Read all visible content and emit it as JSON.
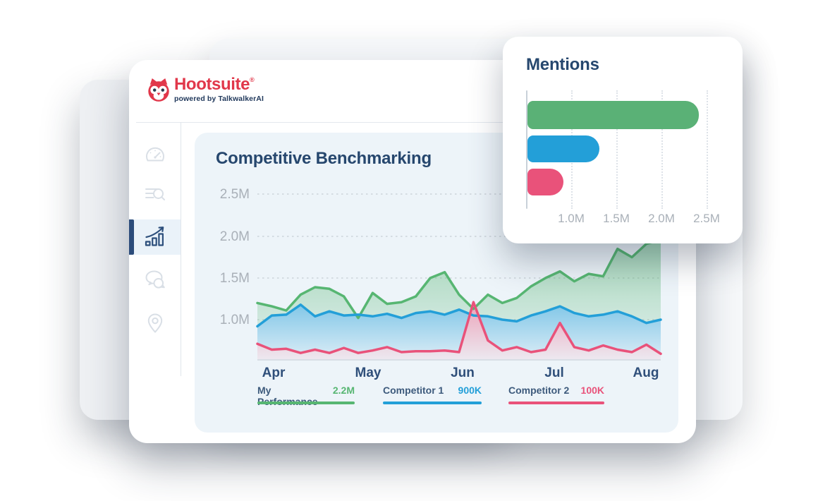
{
  "brand": {
    "logo_text": "Hootsuite",
    "registered_mark": "®",
    "tagline": "powered by TalkwalkerAI",
    "logo_red": "#e1374a",
    "navy": "#26476e"
  },
  "sidebar": {
    "active_color": "#2d4f7c",
    "inactive_color": "#d9dfe6",
    "active_bg": "#eaf2f9",
    "items": [
      {
        "label": "dashboard",
        "icon": "speedometer-icon",
        "active": false
      },
      {
        "label": "listening-search",
        "icon": "search-list-icon",
        "active": false
      },
      {
        "label": "analytics",
        "icon": "growth-chart-icon",
        "active": true
      },
      {
        "label": "conversations",
        "icon": "chat-bubbles-icon",
        "active": false
      },
      {
        "label": "locations",
        "icon": "location-pin-icon",
        "active": false
      }
    ]
  },
  "benchmark_panel": {
    "title": "Competitive Benchmarking",
    "legend": [
      {
        "name": "My Performance",
        "value": "2.2M",
        "color": "#57b672"
      },
      {
        "name": "Competitor 1",
        "value": "900K",
        "color": "#239fd8"
      },
      {
        "name": "Competitor 2",
        "value": "100K",
        "color": "#e9527a"
      }
    ]
  },
  "mentions_card": {
    "title": "Mentions"
  },
  "chart_data": [
    {
      "id": "competitive-benchmarking",
      "type": "area",
      "title": "Competitive Benchmarking",
      "x_tick_labels": [
        "Apr",
        "May",
        "Jun",
        "Jul",
        "Aug"
      ],
      "y_tick_labels": [
        "2.5M",
        "2.0M",
        "1.5M",
        "1.0M"
      ],
      "y_tick_values": [
        2.5,
        2.0,
        1.5,
        1.0
      ],
      "ylim": [
        0.5,
        2.6
      ],
      "unit": "M",
      "grid": "dashed-horizontal",
      "legend_position": "bottom",
      "series": [
        {
          "name": "My Performance",
          "color": "#57b672",
          "current": "2.2M",
          "values": [
            1.2,
            1.16,
            1.11,
            1.3,
            1.39,
            1.37,
            1.28,
            1.02,
            1.32,
            1.19,
            1.21,
            1.28,
            1.5,
            1.57,
            1.3,
            1.13,
            1.3,
            1.2,
            1.26,
            1.4,
            1.5,
            1.58,
            1.46,
            1.55,
            1.52,
            1.85,
            1.75,
            1.91,
            1.96
          ]
        },
        {
          "name": "Competitor 1",
          "color": "#239fd8",
          "current": "900K",
          "values": [
            0.92,
            1.05,
            1.06,
            1.18,
            1.04,
            1.1,
            1.05,
            1.06,
            1.04,
            1.07,
            1.02,
            1.08,
            1.1,
            1.06,
            1.12,
            1.05,
            1.04,
            1.0,
            0.98,
            1.05,
            1.1,
            1.16,
            1.08,
            1.04,
            1.06,
            1.1,
            1.04,
            0.96,
            1.0
          ]
        },
        {
          "name": "Competitor 2",
          "color": "#e9527a",
          "current": "100K",
          "values": [
            0.71,
            0.64,
            0.65,
            0.6,
            0.64,
            0.6,
            0.66,
            0.6,
            0.63,
            0.67,
            0.61,
            0.62,
            0.62,
            0.63,
            0.61,
            1.21,
            0.75,
            0.63,
            0.67,
            0.61,
            0.64,
            0.96,
            0.67,
            0.63,
            0.69,
            0.64,
            0.61,
            0.7,
            0.59
          ]
        }
      ]
    },
    {
      "id": "mentions",
      "type": "bar",
      "orientation": "horizontal",
      "title": "Mentions",
      "categories": [
        "My Performance",
        "Competitor 1",
        "Competitor 2"
      ],
      "values": [
        2.4,
        1.3,
        0.9
      ],
      "unit": "M",
      "colors": [
        "#5ab176",
        "#239fd8",
        "#e9527a"
      ],
      "x_tick_labels": [
        "1.0M",
        "1.5M",
        "2.0M",
        "2.5M"
      ],
      "x_tick_values": [
        1.0,
        1.5,
        2.0,
        2.5
      ],
      "xlim": [
        0.5,
        2.6
      ],
      "grid": "dotted-vertical",
      "legend_position": "none"
    }
  ]
}
